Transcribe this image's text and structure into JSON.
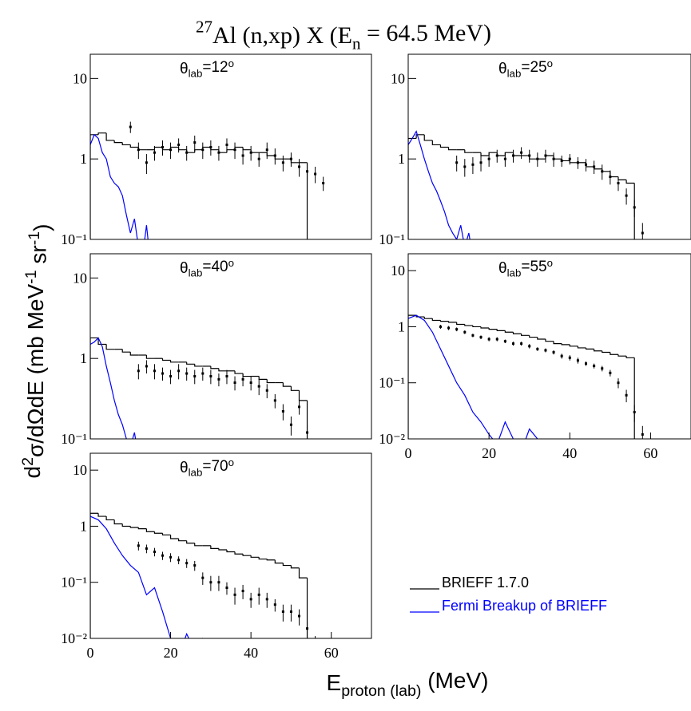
{
  "chart_data": {
    "type": "histogram-multi",
    "title_parts": [
      {
        "text": "27",
        "style": "sup"
      },
      {
        "text": "Al (n,xp) X     (E"
      },
      {
        "text": "n",
        "style": "sub"
      },
      {
        "text": " = 64.5 MeV)"
      }
    ],
    "ylabel_parts": [
      {
        "text": "d"
      },
      {
        "text": "2",
        "style": "sup"
      },
      {
        "text": "σ/dΩdE    (mb MeV"
      },
      {
        "text": "-1",
        "style": "sup"
      },
      {
        "text": " sr"
      },
      {
        "text": "-1",
        "style": "sup"
      },
      {
        "text": ")"
      }
    ],
    "xlabel_parts": [
      {
        "text": "E"
      },
      {
        "text": "proton (lab)",
        "style": "sub"
      },
      {
        "text": "     (MeV)"
      }
    ],
    "log_y": true,
    "legend": [
      {
        "name": "BRIEFF 1.7.0",
        "color": "#000000"
      },
      {
        "name": "Fermi Breakup of BRIEFF",
        "color": "#0000ff"
      }
    ],
    "panels": [
      {
        "label_parts": [
          {
            "text": "θ"
          },
          {
            "text": "lab",
            "style": "sub"
          },
          {
            "text": "=12"
          },
          {
            "text": "o",
            "style": "sup"
          }
        ],
        "xlim": [
          0,
          70
        ],
        "ylim": [
          0.1,
          20
        ],
        "yticks": [
          {
            "value": 0.1,
            "label": "10⁻¹"
          },
          1,
          10
        ],
        "brieff": {
          "color": "#000000",
          "bins": [
            0,
            2,
            4,
            6,
            8,
            10,
            12,
            14,
            16,
            18,
            20,
            22,
            24,
            26,
            28,
            30,
            32,
            34,
            36,
            38,
            40,
            42,
            44,
            46,
            48,
            50,
            52,
            54
          ],
          "values": [
            2.0,
            2.1,
            1.7,
            1.6,
            1.5,
            1.4,
            1.3,
            1.3,
            1.4,
            1.3,
            1.4,
            1.3,
            1.2,
            1.3,
            1.4,
            1.3,
            1.2,
            1.3,
            1.4,
            1.3,
            1.2,
            1.2,
            1.1,
            1.0,
            1.0,
            0.9,
            0.9
          ]
        },
        "fermi": {
          "color": "#0000ff",
          "x": [
            0,
            1,
            2,
            3,
            4,
            5,
            6,
            7,
            8,
            9,
            10,
            11,
            12,
            13,
            14,
            15
          ],
          "values": [
            1.5,
            2.0,
            1.8,
            1.2,
            1.0,
            0.6,
            0.5,
            0.45,
            0.35,
            0.2,
            0.12,
            0.18,
            0.08,
            0.06,
            0.15,
            0.05
          ]
        },
        "exp": {
          "color": "#000000",
          "x": [
            10,
            12,
            14,
            16,
            18,
            20,
            22,
            24,
            26,
            28,
            30,
            32,
            34,
            36,
            38,
            40,
            42,
            44,
            46,
            48,
            50,
            52,
            54,
            56,
            58
          ],
          "values": [
            2.5,
            1.3,
            0.9,
            1.2,
            1.4,
            1.3,
            1.5,
            1.2,
            1.6,
            1.3,
            1.4,
            1.2,
            1.5,
            1.3,
            1.1,
            1.2,
            1.0,
            1.3,
            1.1,
            0.9,
            1.0,
            0.8,
            0.7,
            0.65,
            0.5
          ],
          "errors": [
            0.4,
            0.3,
            0.25,
            0.25,
            0.3,
            0.3,
            0.3,
            0.25,
            0.35,
            0.3,
            0.3,
            0.25,
            0.3,
            0.3,
            0.25,
            0.25,
            0.2,
            0.3,
            0.25,
            0.2,
            0.2,
            0.2,
            0.15,
            0.15,
            0.1
          ]
        }
      },
      {
        "label_parts": [
          {
            "text": "θ"
          },
          {
            "text": "lab",
            "style": "sub"
          },
          {
            "text": "=25"
          },
          {
            "text": "o",
            "style": "sup"
          }
        ],
        "xlim": [
          0,
          70
        ],
        "ylim": [
          0.1,
          20
        ],
        "yticks": [
          {
            "value": 0.1,
            "label": "10⁻¹"
          },
          1,
          10
        ],
        "brieff": {
          "color": "#000000",
          "bins": [
            0,
            2,
            4,
            6,
            8,
            10,
            12,
            14,
            16,
            18,
            20,
            22,
            24,
            26,
            28,
            30,
            32,
            34,
            36,
            38,
            40,
            42,
            44,
            46,
            48,
            50,
            52,
            54,
            56
          ],
          "values": [
            1.8,
            2.0,
            1.7,
            1.5,
            1.4,
            1.3,
            1.3,
            1.2,
            1.2,
            1.1,
            1.2,
            1.1,
            1.2,
            1.1,
            1.1,
            1.0,
            1.0,
            1.1,
            1.0,
            0.95,
            0.9,
            0.9,
            0.8,
            0.75,
            0.7,
            0.6,
            0.55,
            0.5
          ]
        },
        "fermi": {
          "color": "#0000ff",
          "x": [
            0,
            1,
            2,
            3,
            4,
            5,
            6,
            7,
            8,
            9,
            10,
            11,
            12,
            13,
            14,
            15,
            16,
            17
          ],
          "values": [
            1.5,
            1.8,
            2.2,
            1.5,
            1.0,
            0.7,
            0.5,
            0.4,
            0.3,
            0.22,
            0.15,
            0.12,
            0.1,
            0.15,
            0.08,
            0.12,
            0.06,
            0.04
          ]
        },
        "exp": {
          "color": "#000000",
          "x": [
            12,
            14,
            16,
            18,
            20,
            22,
            24,
            26,
            28,
            30,
            32,
            34,
            36,
            38,
            40,
            42,
            44,
            46,
            48,
            50,
            52,
            54,
            56,
            58,
            60
          ],
          "values": [
            0.9,
            0.8,
            0.85,
            0.9,
            1.0,
            1.1,
            1.0,
            1.1,
            1.2,
            1.1,
            1.0,
            1.1,
            1.0,
            0.95,
            1.0,
            0.9,
            0.85,
            0.8,
            0.7,
            0.6,
            0.5,
            0.35,
            0.25,
            0.12,
            0.06
          ],
          "errors": [
            0.2,
            0.2,
            0.2,
            0.2,
            0.2,
            0.2,
            0.2,
            0.2,
            0.2,
            0.2,
            0.2,
            0.2,
            0.2,
            0.15,
            0.15,
            0.15,
            0.15,
            0.15,
            0.15,
            0.12,
            0.1,
            0.08,
            0.06,
            0.04,
            0.02
          ]
        }
      },
      {
        "label_parts": [
          {
            "text": "θ"
          },
          {
            "text": "lab",
            "style": "sub"
          },
          {
            "text": "=40"
          },
          {
            "text": "o",
            "style": "sup"
          }
        ],
        "xlim": [
          0,
          70
        ],
        "ylim": [
          0.1,
          20
        ],
        "yticks": [
          {
            "value": 0.1,
            "label": "10⁻¹"
          },
          1,
          10
        ],
        "brieff": {
          "color": "#000000",
          "bins": [
            0,
            2,
            4,
            6,
            8,
            10,
            12,
            14,
            16,
            18,
            20,
            22,
            24,
            26,
            28,
            30,
            32,
            34,
            36,
            38,
            40,
            42,
            44,
            46,
            48,
            50,
            52,
            54
          ],
          "values": [
            1.8,
            1.5,
            1.3,
            1.3,
            1.2,
            1.1,
            1.1,
            1.0,
            1.0,
            0.95,
            0.9,
            0.9,
            0.85,
            0.8,
            0.8,
            0.75,
            0.7,
            0.7,
            0.65,
            0.6,
            0.6,
            0.55,
            0.5,
            0.5,
            0.45,
            0.4,
            0.3
          ]
        },
        "fermi": {
          "color": "#0000ff",
          "x": [
            0,
            1,
            2,
            3,
            4,
            5,
            6,
            7,
            8,
            9,
            10,
            11,
            12,
            13,
            14,
            15,
            16,
            17,
            18
          ],
          "values": [
            1.5,
            1.6,
            1.8,
            1.4,
            0.8,
            0.5,
            0.3,
            0.2,
            0.15,
            0.1,
            0.08,
            0.12,
            0.06,
            0.1,
            0.05,
            0.08,
            0.04,
            0.06,
            0.03
          ]
        },
        "exp": {
          "color": "#000000",
          "x": [
            12,
            14,
            16,
            18,
            20,
            22,
            24,
            26,
            28,
            30,
            32,
            34,
            36,
            38,
            40,
            42,
            44,
            46,
            48,
            50,
            52,
            54,
            56
          ],
          "values": [
            0.7,
            0.8,
            0.7,
            0.65,
            0.6,
            0.7,
            0.65,
            0.6,
            0.65,
            0.6,
            0.55,
            0.6,
            0.5,
            0.55,
            0.5,
            0.45,
            0.4,
            0.3,
            0.22,
            0.15,
            0.25,
            0.12,
            0.08
          ],
          "errors": [
            0.15,
            0.15,
            0.15,
            0.12,
            0.12,
            0.15,
            0.12,
            0.12,
            0.12,
            0.12,
            0.1,
            0.12,
            0.1,
            0.1,
            0.1,
            0.1,
            0.08,
            0.06,
            0.05,
            0.04,
            0.05,
            0.03,
            0.02
          ]
        }
      },
      {
        "label_parts": [
          {
            "text": "θ"
          },
          {
            "text": "lab",
            "style": "sub"
          },
          {
            "text": "=55"
          },
          {
            "text": "o",
            "style": "sup"
          }
        ],
        "xlim": [
          0,
          70
        ],
        "ylim": [
          0.01,
          20
        ],
        "yticks": [
          {
            "value": 0.01,
            "label": "10⁻²"
          },
          {
            "value": 0.1,
            "label": "10⁻¹"
          },
          1,
          10
        ],
        "xticks": [
          0,
          20,
          40,
          60
        ],
        "brieff": {
          "color": "#000000",
          "bins": [
            0,
            2,
            4,
            6,
            8,
            10,
            12,
            14,
            16,
            18,
            20,
            22,
            24,
            26,
            28,
            30,
            32,
            34,
            36,
            38,
            40,
            42,
            44,
            46,
            48,
            50,
            52,
            54,
            56
          ],
          "values": [
            1.6,
            1.5,
            1.4,
            1.3,
            1.25,
            1.2,
            1.1,
            1.05,
            1.0,
            0.95,
            0.9,
            0.85,
            0.8,
            0.75,
            0.7,
            0.65,
            0.6,
            0.55,
            0.5,
            0.48,
            0.45,
            0.42,
            0.4,
            0.37,
            0.35,
            0.32,
            0.3,
            0.28
          ]
        },
        "fermi": {
          "color": "#0000ff",
          "x": [
            0,
            2,
            4,
            6,
            8,
            10,
            12,
            14,
            16,
            18,
            20,
            22,
            24,
            26,
            28,
            30,
            32,
            34,
            36
          ],
          "values": [
            1.4,
            1.6,
            1.3,
            0.8,
            0.4,
            0.2,
            0.1,
            0.06,
            0.03,
            0.02,
            0.012,
            0.008,
            0.02,
            0.01,
            0.006,
            0.015,
            0.01,
            0.008,
            0.005
          ]
        },
        "exp": {
          "color": "#000000",
          "x": [
            8,
            10,
            12,
            14,
            16,
            18,
            20,
            22,
            24,
            26,
            28,
            30,
            32,
            34,
            36,
            38,
            40,
            42,
            44,
            46,
            48,
            50,
            52,
            54,
            56,
            58
          ],
          "values": [
            1.0,
            0.95,
            0.9,
            0.8,
            0.7,
            0.65,
            0.6,
            0.6,
            0.55,
            0.5,
            0.5,
            0.45,
            0.4,
            0.38,
            0.35,
            0.3,
            0.28,
            0.25,
            0.22,
            0.2,
            0.18,
            0.15,
            0.1,
            0.06,
            0.03,
            0.012
          ],
          "errors": [
            0.08,
            0.08,
            0.07,
            0.06,
            0.05,
            0.05,
            0.05,
            0.05,
            0.04,
            0.04,
            0.04,
            0.04,
            0.03,
            0.03,
            0.03,
            0.03,
            0.03,
            0.03,
            0.02,
            0.02,
            0.02,
            0.02,
            0.02,
            0.015,
            0.01,
            0.005
          ]
        }
      },
      {
        "label_parts": [
          {
            "text": "θ"
          },
          {
            "text": "lab",
            "style": "sub"
          },
          {
            "text": "=70"
          },
          {
            "text": "o",
            "style": "sup"
          }
        ],
        "xlim": [
          0,
          70
        ],
        "ylim": [
          0.01,
          20
        ],
        "yticks": [
          {
            "value": 0.01,
            "label": "10⁻²"
          },
          {
            "value": 0.1,
            "label": "10⁻¹"
          },
          1,
          10
        ],
        "xticks": [
          0,
          20,
          40,
          60
        ],
        "brieff": {
          "color": "#000000",
          "bins": [
            0,
            2,
            4,
            6,
            8,
            10,
            12,
            14,
            16,
            18,
            20,
            22,
            24,
            26,
            28,
            30,
            32,
            34,
            36,
            38,
            40,
            42,
            44,
            46,
            48,
            50,
            52,
            54
          ],
          "values": [
            1.7,
            1.5,
            1.3,
            1.1,
            1.0,
            0.95,
            0.9,
            0.8,
            0.75,
            0.7,
            0.6,
            0.55,
            0.5,
            0.45,
            0.45,
            0.4,
            0.38,
            0.35,
            0.32,
            0.3,
            0.28,
            0.26,
            0.25,
            0.22,
            0.2,
            0.18,
            0.12
          ]
        },
        "fermi": {
          "color": "#0000ff",
          "x": [
            0,
            2,
            4,
            6,
            8,
            10,
            12,
            14,
            16,
            18,
            20,
            22,
            24,
            26,
            28,
            30
          ],
          "values": [
            1.5,
            1.3,
            0.9,
            0.5,
            0.3,
            0.2,
            0.15,
            0.06,
            0.08,
            0.03,
            0.01,
            0.005,
            0.012,
            0.006,
            0.01,
            0.008
          ]
        },
        "exp": {
          "color": "#000000",
          "x": [
            12,
            14,
            16,
            18,
            20,
            22,
            24,
            26,
            28,
            30,
            32,
            34,
            36,
            38,
            40,
            42,
            44,
            46,
            48,
            50,
            52,
            54,
            56
          ],
          "values": [
            0.45,
            0.4,
            0.35,
            0.3,
            0.28,
            0.25,
            0.22,
            0.2,
            0.12,
            0.1,
            0.1,
            0.08,
            0.06,
            0.07,
            0.05,
            0.06,
            0.05,
            0.04,
            0.03,
            0.03,
            0.025,
            0.015,
            0.008
          ],
          "errors": [
            0.08,
            0.07,
            0.06,
            0.05,
            0.05,
            0.04,
            0.04,
            0.04,
            0.03,
            0.03,
            0.03,
            0.02,
            0.02,
            0.02,
            0.015,
            0.02,
            0.015,
            0.01,
            0.01,
            0.01,
            0.008,
            0.005,
            0.003
          ]
        }
      }
    ]
  }
}
